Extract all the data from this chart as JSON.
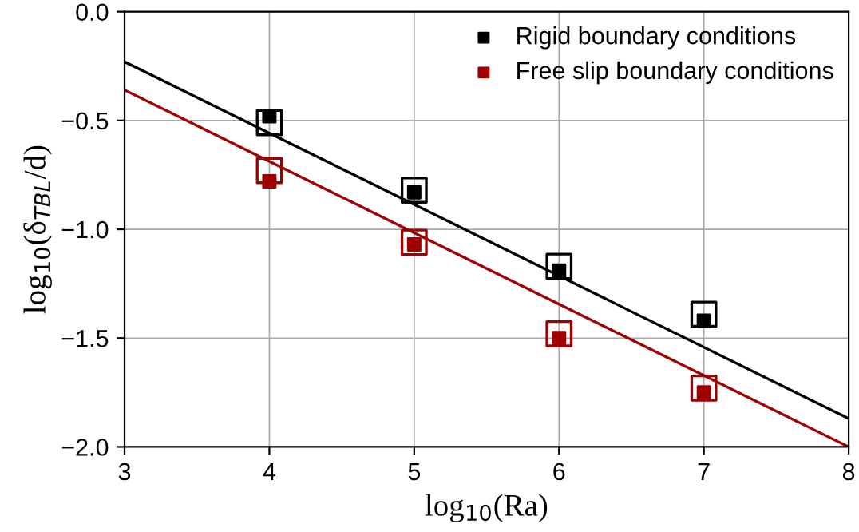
{
  "chart_data": {
    "type": "scatter",
    "xlabel": "log$_{10}$(Ra)",
    "ylabel": "log$_{10}$(δ$_{TBL}$/d)",
    "xlim": [
      3,
      8
    ],
    "ylim": [
      -2.0,
      0.0
    ],
    "xticks": [
      3,
      4,
      5,
      6,
      7,
      8
    ],
    "yticks": [
      {
        "value": -2.0,
        "label": "−2.0"
      },
      {
        "value": -1.5,
        "label": "−1.5"
      },
      {
        "value": -1.0,
        "label": "−1.0"
      },
      {
        "value": -0.5,
        "label": "−0.5"
      },
      {
        "value": 0.0,
        "label": "0.0"
      }
    ],
    "grid": true,
    "legend": "top right",
    "series": [
      {
        "name": "Rigid boundary conditions",
        "color": "#000000",
        "marker": "square",
        "x": [
          4,
          5,
          6,
          7
        ],
        "values": [
          -0.48,
          -0.83,
          -1.19,
          -1.42
        ]
      },
      {
        "name": "Free slip boundary conditions",
        "color": "#a00000",
        "marker": "square",
        "x": [
          4,
          5,
          6,
          7
        ],
        "values": [
          -0.78,
          -1.07,
          -1.5,
          -1.75
        ]
      },
      {
        "color": "#000000",
        "marker": "square",
        "x": [
          4,
          5,
          6,
          7
        ],
        "values": [
          -0.51,
          -0.82,
          -1.17,
          -1.39
        ]
      },
      {
        "color": "#a00000",
        "marker": "square",
        "x": [
          4,
          5,
          6,
          7
        ],
        "values": [
          -0.73,
          -1.06,
          -1.48,
          -1.73
        ]
      },
      {
        "type": "line",
        "color": "#000000",
        "marker": "none",
        "x": [
          3,
          8
        ],
        "values": [
          -0.23,
          -1.87
        ]
      },
      {
        "type": "line",
        "color": "#a00000",
        "marker": "none",
        "x": [
          3,
          8
        ],
        "values": [
          -0.36,
          -2.0
        ]
      }
    ]
  }
}
